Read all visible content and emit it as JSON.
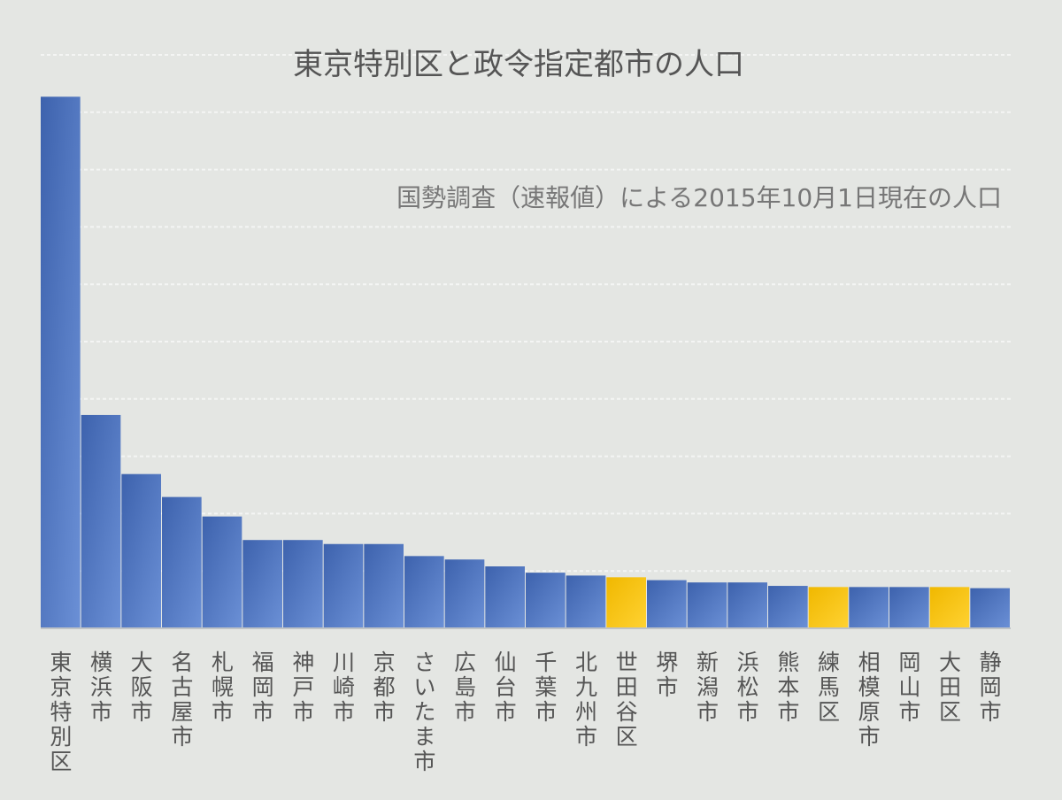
{
  "chart_data": {
    "type": "bar",
    "title": "東京特別区と政令指定都市の人口",
    "subtitle": "国勢調査（速報値）による2015年10月1日現在の人口",
    "xlabel": "",
    "ylabel": "",
    "ylim": [
      0,
      1000
    ],
    "grid": true,
    "gridlines": 10,
    "categories": [
      "東京特別区",
      "横浜市",
      "大阪市",
      "名古屋市",
      "札幌市",
      "福岡市",
      "神戸市",
      "川崎市",
      "京都市",
      "さいたま市",
      "広島市",
      "仙台市",
      "千葉市",
      "北九州市",
      "世田谷区",
      "堺市",
      "新潟市",
      "浜松市",
      "熊本市",
      "練馬区",
      "相模原市",
      "岡山市",
      "大田区",
      "静岡市"
    ],
    "values": [
      927,
      372,
      269,
      229,
      195,
      154,
      154,
      147,
      147,
      126,
      120,
      108,
      97,
      92,
      89,
      84,
      80,
      80,
      74,
      72,
      72,
      72,
      72,
      70
    ],
    "highlight": [
      false,
      false,
      false,
      false,
      false,
      false,
      false,
      false,
      false,
      false,
      false,
      false,
      false,
      false,
      true,
      false,
      false,
      false,
      false,
      true,
      false,
      false,
      true,
      false
    ],
    "colors": {
      "bar": "#3d62ad",
      "bar_light": "#6b90d6",
      "highlight": "#f0b800",
      "highlight_light": "#ffd232"
    }
  }
}
